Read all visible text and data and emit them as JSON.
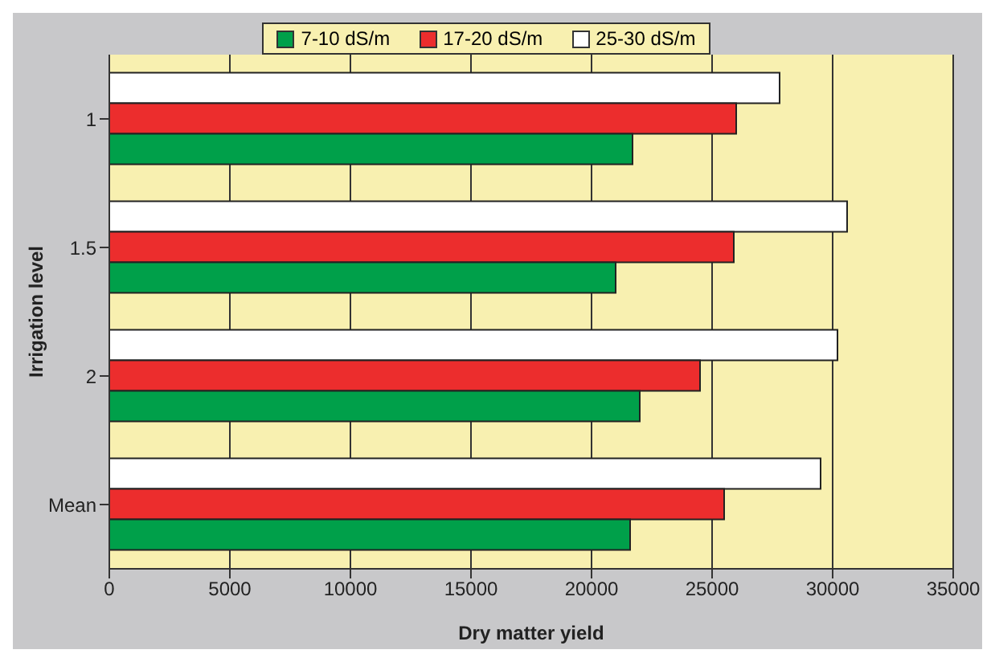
{
  "chart_data": {
    "type": "bar",
    "orientation": "horizontal",
    "xlabel": "Dry matter yield",
    "ylabel": "Irrigation level",
    "categories": [
      "1",
      "1.5",
      "2",
      "Mean"
    ],
    "series": [
      {
        "name": "7-10 dS/m",
        "color": "#00a04a",
        "values": [
          21700,
          21000,
          22000,
          21600
        ]
      },
      {
        "name": "17-20 dS/m",
        "color": "#ec2d2d",
        "values": [
          26000,
          25900,
          24500,
          25500
        ]
      },
      {
        "name": "25-30 dS/m",
        "color": "#ffffff",
        "values": [
          27800,
          30600,
          30200,
          29500
        ]
      }
    ],
    "xlim": [
      0,
      35000
    ],
    "xticks": [
      0,
      5000,
      10000,
      15000,
      20000,
      25000,
      30000,
      35000
    ],
    "grid": "x",
    "legend": "top"
  }
}
